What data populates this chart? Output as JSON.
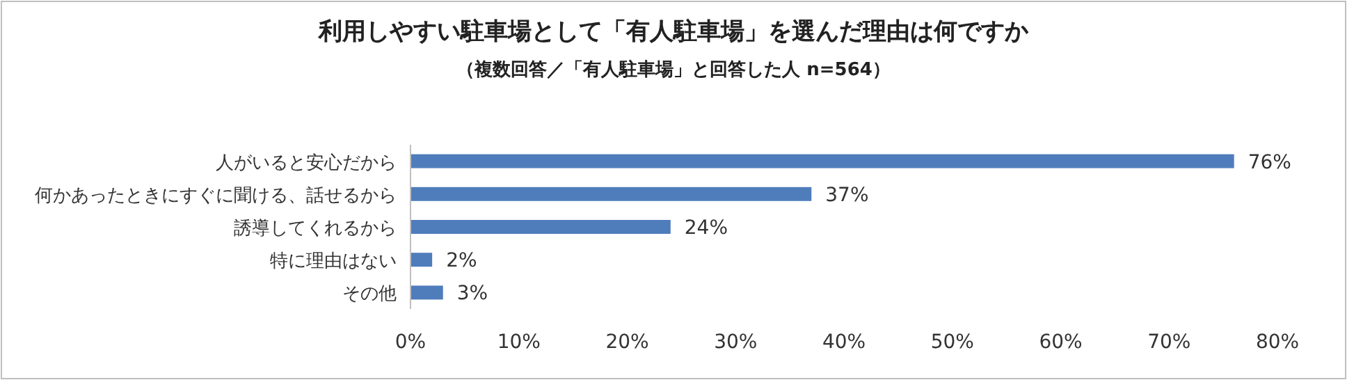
{
  "chart_data": {
    "type": "bar",
    "orientation": "horizontal",
    "title": "利用しやすい駐車場として「有人駐車場」を選んだ理由は何ですか",
    "subtitle": "（複数回答／「有人駐車場」と回答した人 n=564）",
    "categories": [
      "人がいると安心だから",
      "何かあったときにすぐに聞ける、話せるから",
      "誘導してくれるから",
      "特に理由はない",
      "その他"
    ],
    "values": [
      76,
      37,
      24,
      2,
      3
    ],
    "color": "#4f7dbc",
    "value_labels": [
      "76%",
      "37%",
      "24%",
      "2%",
      "3%"
    ],
    "xlim": [
      0,
      80
    ],
    "xticks": [
      {
        "value": 0,
        "label": "0%"
      },
      {
        "value": 10,
        "label": "10%"
      },
      {
        "value": 20,
        "label": "20%"
      },
      {
        "value": 30,
        "label": "30%"
      },
      {
        "value": 40,
        "label": "40%"
      },
      {
        "value": 50,
        "label": "50%"
      },
      {
        "value": 60,
        "label": "60%"
      },
      {
        "value": 70,
        "label": "70%"
      },
      {
        "value": 80,
        "label": "80%"
      }
    ]
  }
}
